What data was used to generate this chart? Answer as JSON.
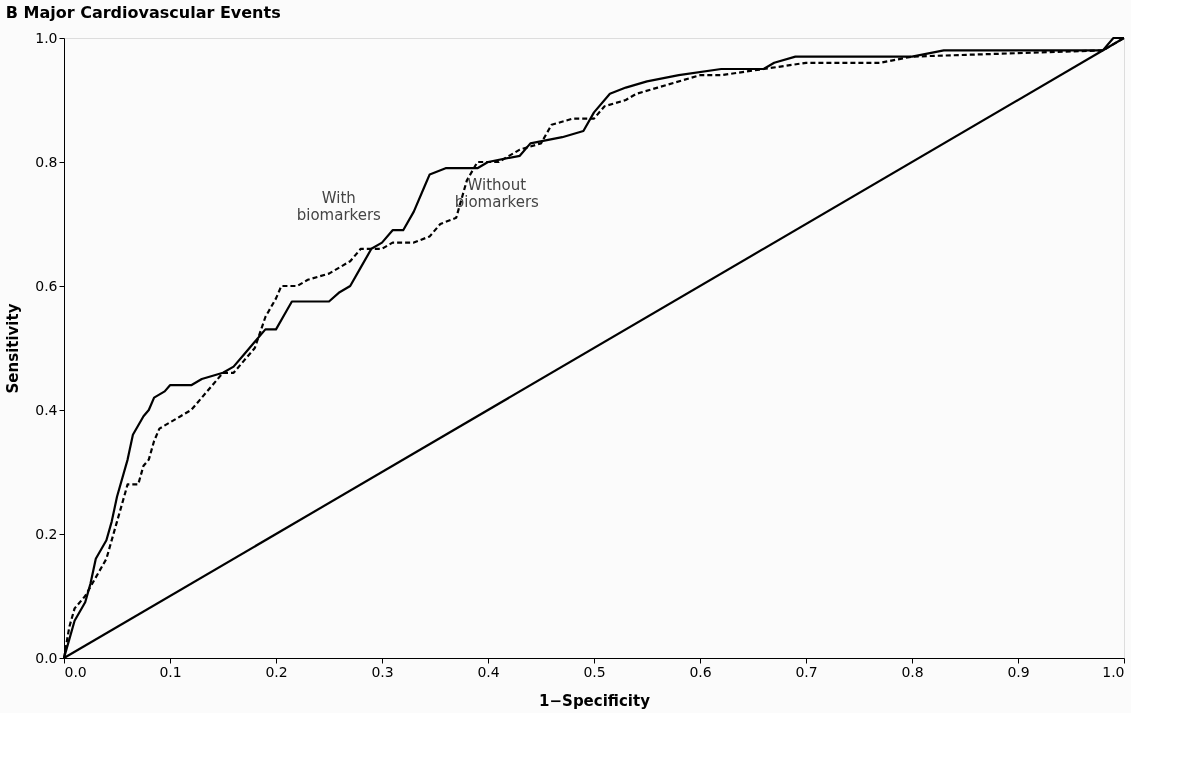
{
  "chart_data": {
    "type": "line",
    "title": "B  Major Cardiovascular Events",
    "xlabel": "1−Specificity",
    "ylabel": "Sensitivity",
    "xlim": [
      0,
      1.0
    ],
    "ylim": [
      0,
      1.0
    ],
    "xticks": [
      {
        "value": 0,
        "label": "0.0"
      },
      0.1,
      0.2,
      0.3,
      0.4,
      0.5,
      0.6,
      0.7,
      0.8,
      0.9,
      {
        "value": 1,
        "label": "1.0"
      }
    ],
    "yticks": [
      {
        "value": 0,
        "label": "0.0"
      },
      0.2,
      0.4,
      0.6,
      0.8,
      {
        "value": 1,
        "label": "1.0"
      }
    ],
    "grid": false,
    "series": [
      {
        "name": "With biomarkers",
        "color": "#000000",
        "line_style": "solid",
        "x": [
          0,
          0.005,
          0.01,
          0.02,
          0.025,
          0.03,
          0.04,
          0.045,
          0.05,
          0.06,
          0.065,
          0.075,
          0.08,
          0.085,
          0.095,
          0.1,
          0.12,
          0.13,
          0.15,
          0.16,
          0.17,
          0.18,
          0.19,
          0.2,
          0.21,
          0.215,
          0.25,
          0.26,
          0.27,
          0.28,
          0.29,
          0.3,
          0.31,
          0.32,
          0.33,
          0.34,
          0.345,
          0.36,
          0.39,
          0.4,
          0.43,
          0.44,
          0.47,
          0.49,
          0.5,
          0.515,
          0.53,
          0.55,
          0.58,
          0.62,
          0.66,
          0.67,
          0.69,
          0.72,
          0.76,
          0.8,
          0.83,
          0.98,
          0.99,
          1.0
        ],
        "values": [
          0,
          0.03,
          0.06,
          0.09,
          0.12,
          0.16,
          0.19,
          0.22,
          0.26,
          0.32,
          0.36,
          0.39,
          0.4,
          0.42,
          0.43,
          0.44,
          0.44,
          0.45,
          0.46,
          0.47,
          0.49,
          0.51,
          0.53,
          0.53,
          0.56,
          0.575,
          0.575,
          0.59,
          0.6,
          0.63,
          0.66,
          0.67,
          0.69,
          0.69,
          0.72,
          0.76,
          0.78,
          0.79,
          0.79,
          0.8,
          0.81,
          0.83,
          0.84,
          0.85,
          0.88,
          0.91,
          0.92,
          0.93,
          0.94,
          0.95,
          0.95,
          0.96,
          0.97,
          0.97,
          0.97,
          0.97,
          0.98,
          0.98,
          1.0,
          1.0
        ]
      },
      {
        "name": "Without biomarkers",
        "color": "#000000",
        "line_style": "dashed",
        "x": [
          0,
          0.005,
          0.01,
          0.02,
          0.03,
          0.04,
          0.05,
          0.055,
          0.06,
          0.07,
          0.075,
          0.08,
          0.085,
          0.09,
          0.1,
          0.11,
          0.12,
          0.13,
          0.14,
          0.15,
          0.16,
          0.17,
          0.18,
          0.19,
          0.2,
          0.205,
          0.22,
          0.23,
          0.25,
          0.27,
          0.28,
          0.3,
          0.31,
          0.33,
          0.345,
          0.355,
          0.37,
          0.375,
          0.38,
          0.39,
          0.41,
          0.43,
          0.45,
          0.46,
          0.48,
          0.5,
          0.51,
          0.53,
          0.54,
          0.56,
          0.6,
          0.62,
          0.66,
          0.7,
          0.73,
          0.77,
          0.8,
          0.98,
          1.0
        ],
        "values": [
          0,
          0.05,
          0.08,
          0.1,
          0.13,
          0.16,
          0.22,
          0.25,
          0.28,
          0.28,
          0.31,
          0.32,
          0.35,
          0.37,
          0.38,
          0.39,
          0.4,
          0.42,
          0.44,
          0.46,
          0.46,
          0.48,
          0.5,
          0.55,
          0.58,
          0.6,
          0.6,
          0.61,
          0.62,
          0.64,
          0.66,
          0.66,
          0.67,
          0.67,
          0.68,
          0.7,
          0.71,
          0.74,
          0.77,
          0.8,
          0.8,
          0.82,
          0.83,
          0.86,
          0.87,
          0.87,
          0.89,
          0.9,
          0.91,
          0.92,
          0.94,
          0.94,
          0.95,
          0.96,
          0.96,
          0.96,
          0.97,
          0.98,
          1.0
        ]
      },
      {
        "color": "#000000",
        "line_style": "solid",
        "x": [
          0,
          1.0
        ],
        "values": [
          0,
          1.0
        ]
      }
    ]
  }
}
